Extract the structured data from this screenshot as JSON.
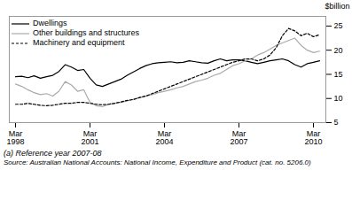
{
  "chart_data": {
    "type": "line",
    "ylabel": "$billion",
    "annotations": [
      "(a) Reference year 2007-08",
      "Source: Australian National Accounts: National Income, Expenditure and Product (cat. no. 5206.0)"
    ],
    "categories": [
      "Mar\n1998",
      null,
      null,
      null,
      null,
      null,
      null,
      null,
      null,
      null,
      null,
      null,
      "Mar\n2001",
      null,
      null,
      null,
      null,
      null,
      null,
      null,
      null,
      null,
      null,
      null,
      "Mar\n2004",
      null,
      null,
      null,
      null,
      null,
      null,
      null,
      null,
      null,
      null,
      null,
      "Mar\n2007",
      null,
      null,
      null,
      null,
      null,
      null,
      null,
      null,
      null,
      null,
      null,
      "Mar\n2010",
      null
    ],
    "series": [
      {
        "name": "Dwellings",
        "color": "#000000",
        "line_style": "solid",
        "values": [
          14.5,
          14.6,
          14.3,
          14.7,
          14.2,
          14.5,
          14.8,
          15.6,
          17.0,
          16.5,
          15.8,
          16.0,
          14.2,
          12.8,
          12.5,
          13.0,
          13.5,
          14.0,
          14.8,
          15.5,
          16.2,
          16.8,
          17.2,
          17.4,
          17.5,
          17.6,
          17.4,
          17.5,
          17.8,
          17.6,
          17.4,
          17.3,
          17.8,
          18.2,
          17.8,
          18.0,
          18.0,
          17.8,
          17.5,
          17.2,
          17.5,
          17.8,
          18.0,
          18.2,
          17.8,
          17.0,
          16.5,
          17.2,
          17.5,
          17.8
        ]
      },
      {
        "name": "Other buildings and structures",
        "color": "#aaaaaa",
        "line_style": "solid",
        "values": [
          13.0,
          12.5,
          11.8,
          11.2,
          10.8,
          11.0,
          10.5,
          11.5,
          13.5,
          12.8,
          11.5,
          11.8,
          9.2,
          8.5,
          8.3,
          8.8,
          9.0,
          9.2,
          9.5,
          9.8,
          10.2,
          10.5,
          10.8,
          11.2,
          11.5,
          11.8,
          12.2,
          12.5,
          13.0,
          13.5,
          13.8,
          14.2,
          14.8,
          15.2,
          16.0,
          16.8,
          17.2,
          17.8,
          18.2,
          19.0,
          19.5,
          20.2,
          21.0,
          21.5,
          22.0,
          22.5,
          21.0,
          20.0,
          19.5,
          19.8
        ]
      },
      {
        "name": "Machinery and equipment",
        "color": "#000000",
        "line_style": "dashed",
        "values": [
          8.8,
          8.8,
          9.0,
          8.8,
          8.6,
          8.5,
          8.6,
          8.8,
          9.0,
          9.0,
          9.2,
          9.2,
          9.0,
          8.8,
          8.7,
          8.8,
          9.0,
          9.3,
          9.6,
          9.8,
          10.2,
          10.5,
          11.0,
          11.5,
          12.0,
          12.5,
          13.0,
          13.5,
          14.0,
          14.5,
          15.0,
          15.5,
          16.0,
          16.5,
          17.0,
          17.5,
          17.8,
          18.2,
          18.2,
          17.8,
          18.2,
          19.0,
          20.5,
          23.0,
          24.5,
          24.0,
          23.0,
          23.5,
          22.8,
          23.2
        ]
      }
    ],
    "ylim": [
      5,
      27
    ],
    "yticks": [
      5,
      10,
      15,
      20,
      25
    ],
    "grid": false,
    "legend": "upper left"
  }
}
